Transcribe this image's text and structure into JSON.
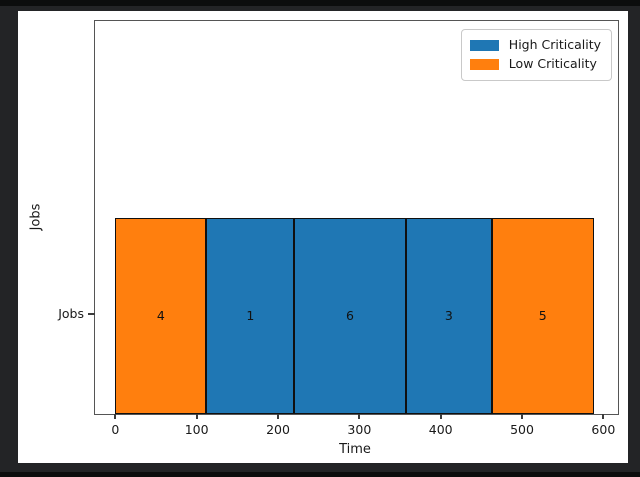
{
  "window": {
    "background": "#232426"
  },
  "chart_data": {
    "type": "bar",
    "subtype": "gantt-timeline",
    "title": "",
    "xlabel": "Time",
    "ylabel": "Jobs",
    "ytick_labels": [
      "Jobs"
    ],
    "x_ticks": [
      0,
      100,
      200,
      300,
      400,
      500,
      600
    ],
    "xlim": [
      -25,
      618
    ],
    "grid": false,
    "colors": {
      "high": "#1f77b4",
      "low": "#ff7f0e",
      "edge": "#101010"
    },
    "legend": {
      "position": "upper right",
      "entries": [
        {
          "label": "High Criticality",
          "color": "#1f77b4"
        },
        {
          "label": "Low Criticality",
          "color": "#ff7f0e"
        }
      ]
    },
    "segments": [
      {
        "label": "4",
        "start": 0,
        "end": 112,
        "criticality": "Low Criticality",
        "color": "#ff7f0e"
      },
      {
        "label": "1",
        "start": 112,
        "end": 220,
        "criticality": "High Criticality",
        "color": "#1f77b4"
      },
      {
        "label": "6",
        "start": 220,
        "end": 357,
        "criticality": "High Criticality",
        "color": "#1f77b4"
      },
      {
        "label": "3",
        "start": 357,
        "end": 463,
        "criticality": "High Criticality",
        "color": "#1f77b4"
      },
      {
        "label": "5",
        "start": 463,
        "end": 588,
        "criticality": "Low Criticality",
        "color": "#ff7f0e"
      }
    ]
  }
}
